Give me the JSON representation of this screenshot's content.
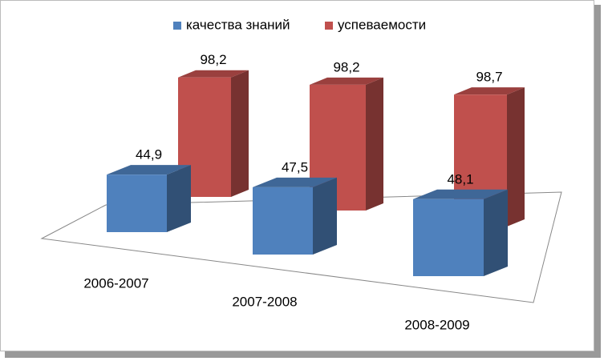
{
  "chart_data": {
    "type": "bar3d",
    "categories": [
      "2006-2007",
      "2007-2008",
      "2008-2009"
    ],
    "series": [
      {
        "name": "качества знаний",
        "color": "#4f81bd",
        "values": [
          44.9,
          47.5,
          48.1
        ],
        "value_labels": [
          "44,9",
          "47,5",
          "48,1"
        ]
      },
      {
        "name": "успеваемости",
        "color": "#c0504d",
        "values": [
          98.2,
          98.2,
          98.7
        ],
        "value_labels": [
          "98,2",
          "98,2",
          "98,7"
        ]
      }
    ]
  }
}
